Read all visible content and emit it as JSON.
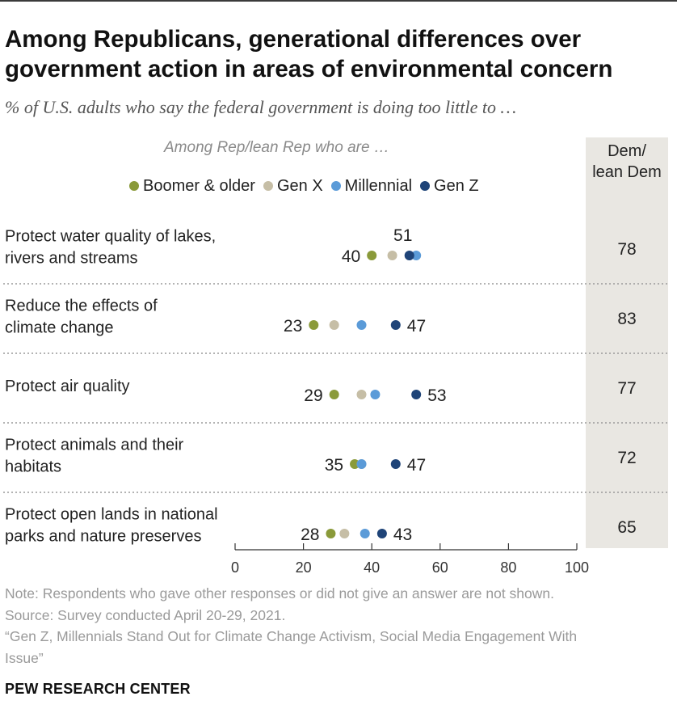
{
  "title": "Among Republicans, generational differences over government action in areas of environmental concern",
  "subtitle": "% of U.S. adults who say the federal government is doing too little to …",
  "group_note": "Among Rep/lean Rep who are …",
  "dem_header_line1": "Dem/",
  "dem_header_line2": "lean Dem",
  "colors": {
    "boomer": "#8a9a3a",
    "genx": "#c6bea6",
    "millennial": "#5b9bd8",
    "genz": "#1f4478",
    "dem_column": "#e9e7e2"
  },
  "chart_data": {
    "type": "dot",
    "title": "Among Republicans, generational differences over government action in areas of environmental concern",
    "xlim": [
      0,
      100
    ],
    "xticks": [
      0,
      20,
      40,
      60,
      80,
      100
    ],
    "series": [
      {
        "key": "boomer",
        "name": "Boomer & older"
      },
      {
        "key": "genx",
        "name": "Gen X"
      },
      {
        "key": "millennial",
        "name": "Millennial"
      },
      {
        "key": "genz",
        "name": "Gen Z"
      }
    ],
    "rows": [
      {
        "label_lines": [
          "Protect water quality of lakes,",
          "rivers and streams"
        ],
        "values": {
          "boomer": 40,
          "genx": 46,
          "millennial": 53,
          "genz": 51
        },
        "min_label": "40",
        "max_label": "51",
        "dem": 78
      },
      {
        "label_lines": [
          "Reduce the effects of",
          "climate change"
        ],
        "values": {
          "boomer": 23,
          "genx": 29,
          "millennial": 37,
          "genz": 47
        },
        "min_label": "23",
        "max_label": "47",
        "dem": 83
      },
      {
        "label_lines": [
          "Protect air quality"
        ],
        "values": {
          "boomer": 29,
          "genx": 37,
          "millennial": 41,
          "genz": 53
        },
        "min_label": "29",
        "max_label": "53",
        "dem": 77
      },
      {
        "label_lines": [
          "Protect animals and their",
          "habitats"
        ],
        "values": {
          "boomer": 35,
          "genx": 37,
          "millennial": 37,
          "genz": 47
        },
        "min_label": "35",
        "max_label": "47",
        "dem": 72
      },
      {
        "label_lines": [
          "Protect open lands in national",
          "parks and nature preserves"
        ],
        "values": {
          "boomer": 28,
          "genx": 32,
          "millennial": 38,
          "genz": 43
        },
        "min_label": "28",
        "max_label": "43",
        "dem": 65
      }
    ]
  },
  "footer": {
    "note": "Note: Respondents who gave other responses or did not give an answer are not shown.",
    "source": "Source: Survey conducted April 20-29, 2021.",
    "report_line1": "“Gen Z, Millennials Stand Out for Climate Change Activism, Social Media Engagement With",
    "report_line2": "Issue”"
  },
  "brand": "PEW RESEARCH CENTER"
}
